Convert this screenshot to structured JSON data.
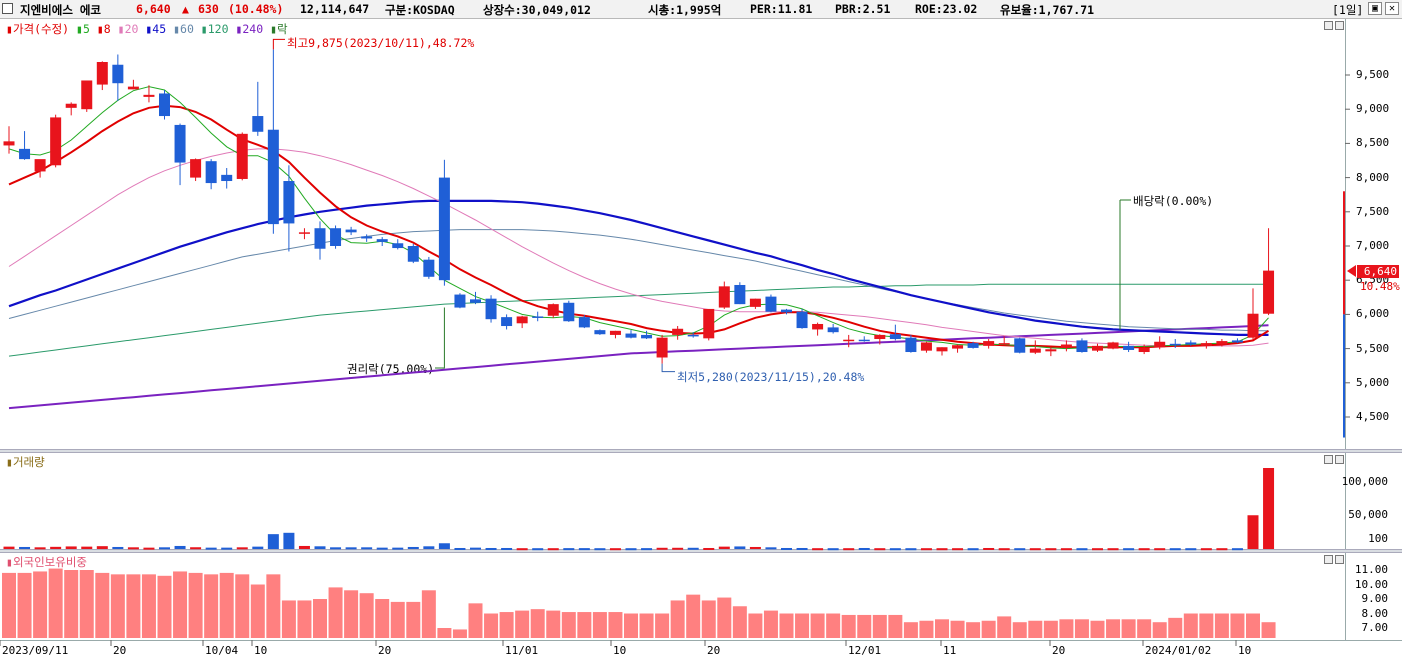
{
  "header": {
    "name": "지엔비에스 에코",
    "price": "6,640",
    "change_arrow": "▲",
    "change": "630",
    "change_pct": "(10.48%)",
    "volume": "12,114,647",
    "market": "구분:KOSDAQ",
    "shares": "상장수:30,049,012",
    "mcap": "시총:1,995억",
    "per": "PER:11.81",
    "pbr": "PBR:2.51",
    "roe": "ROE:23.02",
    "float": "유보율:1,767.71",
    "period": "[1일]"
  },
  "price_panel": {
    "legend_prefix": "가격(수정)",
    "legend": [
      {
        "label": "5",
        "color": "#22aa22"
      },
      {
        "label": "8",
        "color": "#e00000"
      },
      {
        "label": "20",
        "color": "#e07ab8"
      },
      {
        "label": "45",
        "color": "#1010c8"
      },
      {
        "label": "60",
        "color": "#6688aa"
      },
      {
        "label": "120",
        "color": "#2a9a6a"
      },
      {
        "label": "240",
        "color": "#7a22c0"
      },
      {
        "label": "락",
        "color": "#2a7a2a"
      }
    ],
    "annotations": {
      "high": "최고9,875(2023/10/11),48.72%",
      "low": "최저5,280(2023/11/15),20.48%",
      "rights": "권리락(75.00%)",
      "dividend": "배당락(0.00%)"
    },
    "current_price_label": "6,640",
    "current_pct_label": "10.48%",
    "y_ticks": [
      "9,500",
      "9,000",
      "8,500",
      "8,000",
      "7,500",
      "7,000",
      "6,500",
      "6,000",
      "5,500",
      "5,000",
      "4,500"
    ]
  },
  "volume_panel": {
    "title": "거래량",
    "y_ticks": [
      "100,000",
      "50,000",
      "100"
    ]
  },
  "foreign_panel": {
    "title": "외국인보유비중",
    "y_ticks": [
      "11.00",
      "10.00",
      "9.00",
      "8.00",
      "7.00"
    ]
  },
  "x_labels": [
    "2023/09/11",
    "20",
    "10/04",
    "10",
    "20",
    "11/01",
    "10",
    "20",
    "12/01",
    "11",
    "20",
    "2024/01/02",
    "10"
  ],
  "colors": {
    "up": "#e8141c",
    "down": "#1f5fd6",
    "foreign_bar": "#ff8080"
  },
  "chart_data": {
    "type": "candlestick",
    "price_range": [
      4200,
      9900
    ],
    "candles": [
      {
        "o": 8470,
        "h": 8750,
        "l": 8350,
        "c": 8530
      },
      {
        "o": 8420,
        "h": 8680,
        "l": 8260,
        "c": 8270
      },
      {
        "o": 8090,
        "h": 8260,
        "l": 8000,
        "c": 8270
      },
      {
        "o": 8180,
        "h": 8920,
        "l": 8150,
        "c": 8880
      },
      {
        "o": 9020,
        "h": 9100,
        "l": 8910,
        "c": 9080
      },
      {
        "o": 9000,
        "h": 9380,
        "l": 8960,
        "c": 9420
      },
      {
        "o": 9360,
        "h": 9700,
        "l": 9280,
        "c": 9690
      },
      {
        "o": 9650,
        "h": 9800,
        "l": 9120,
        "c": 9380
      },
      {
        "o": 9290,
        "h": 9430,
        "l": 9290,
        "c": 9330
      },
      {
        "o": 9180,
        "h": 9350,
        "l": 9100,
        "c": 9210
      },
      {
        "o": 9230,
        "h": 9280,
        "l": 8850,
        "c": 8900
      },
      {
        "o": 8770,
        "h": 8790,
        "l": 7890,
        "c": 8220
      },
      {
        "o": 8000,
        "h": 8280,
        "l": 7950,
        "c": 8270
      },
      {
        "o": 8240,
        "h": 8270,
        "l": 7830,
        "c": 7920
      },
      {
        "o": 8040,
        "h": 8140,
        "l": 7840,
        "c": 7950
      },
      {
        "o": 7980,
        "h": 8660,
        "l": 7960,
        "c": 8640
      },
      {
        "o": 8900,
        "h": 9400,
        "l": 8610,
        "c": 8670
      },
      {
        "o": 8700,
        "h": 9875,
        "l": 7180,
        "c": 7320
      },
      {
        "o": 7950,
        "h": 8180,
        "l": 6920,
        "c": 7330
      },
      {
        "o": 7180,
        "h": 7260,
        "l": 7100,
        "c": 7200
      },
      {
        "o": 7260,
        "h": 7360,
        "l": 6800,
        "c": 6960
      },
      {
        "o": 7260,
        "h": 7300,
        "l": 6960,
        "c": 7000
      },
      {
        "o": 7240,
        "h": 7280,
        "l": 7160,
        "c": 7200
      },
      {
        "o": 7140,
        "h": 7170,
        "l": 7060,
        "c": 7110
      },
      {
        "o": 7100,
        "h": 7130,
        "l": 7000,
        "c": 7060
      },
      {
        "o": 7040,
        "h": 7100,
        "l": 6950,
        "c": 6970
      },
      {
        "o": 7000,
        "h": 7030,
        "l": 6750,
        "c": 6770
      },
      {
        "o": 6800,
        "h": 6840,
        "l": 6520,
        "c": 6550
      },
      {
        "o": 8000,
        "h": 8260,
        "l": 6420,
        "c": 6500
      },
      {
        "o": 6290,
        "h": 6310,
        "l": 6090,
        "c": 6100
      },
      {
        "o": 6220,
        "h": 6330,
        "l": 6150,
        "c": 6170
      },
      {
        "o": 6230,
        "h": 6280,
        "l": 5880,
        "c": 5930
      },
      {
        "o": 5960,
        "h": 6000,
        "l": 5780,
        "c": 5830
      },
      {
        "o": 5870,
        "h": 5980,
        "l": 5800,
        "c": 5970
      },
      {
        "o": 5970,
        "h": 6040,
        "l": 5900,
        "c": 5950
      },
      {
        "o": 5980,
        "h": 6160,
        "l": 5950,
        "c": 6150
      },
      {
        "o": 6170,
        "h": 6200,
        "l": 5890,
        "c": 5900
      },
      {
        "o": 5960,
        "h": 5990,
        "l": 5800,
        "c": 5810
      },
      {
        "o": 5770,
        "h": 5780,
        "l": 5700,
        "c": 5710
      },
      {
        "o": 5700,
        "h": 5760,
        "l": 5650,
        "c": 5760
      },
      {
        "o": 5720,
        "h": 5770,
        "l": 5650,
        "c": 5660
      },
      {
        "o": 5700,
        "h": 5760,
        "l": 5640,
        "c": 5650
      },
      {
        "o": 5370,
        "h": 5700,
        "l": 5280,
        "c": 5660
      },
      {
        "o": 5700,
        "h": 5830,
        "l": 5630,
        "c": 5790
      },
      {
        "o": 5700,
        "h": 5740,
        "l": 5660,
        "c": 5680
      },
      {
        "o": 5650,
        "h": 6070,
        "l": 5620,
        "c": 6080
      },
      {
        "o": 6100,
        "h": 6480,
        "l": 6080,
        "c": 6410
      },
      {
        "o": 6430,
        "h": 6470,
        "l": 6150,
        "c": 6150
      },
      {
        "o": 6110,
        "h": 6230,
        "l": 6080,
        "c": 6230
      },
      {
        "o": 6260,
        "h": 6290,
        "l": 6030,
        "c": 6040
      },
      {
        "o": 6070,
        "h": 6080,
        "l": 6000,
        "c": 6030
      },
      {
        "o": 6040,
        "h": 6080,
        "l": 5790,
        "c": 5800
      },
      {
        "o": 5780,
        "h": 5880,
        "l": 5690,
        "c": 5860
      },
      {
        "o": 5810,
        "h": 5860,
        "l": 5720,
        "c": 5740
      },
      {
        "o": 5620,
        "h": 5700,
        "l": 5520,
        "c": 5630
      },
      {
        "o": 5630,
        "h": 5680,
        "l": 5600,
        "c": 5620
      },
      {
        "o": 5640,
        "h": 5710,
        "l": 5560,
        "c": 5700
      },
      {
        "o": 5710,
        "h": 5850,
        "l": 5620,
        "c": 5640
      },
      {
        "o": 5660,
        "h": 5700,
        "l": 5440,
        "c": 5450
      },
      {
        "o": 5470,
        "h": 5600,
        "l": 5440,
        "c": 5590
      },
      {
        "o": 5460,
        "h": 5520,
        "l": 5400,
        "c": 5520
      },
      {
        "o": 5500,
        "h": 5560,
        "l": 5440,
        "c": 5550
      },
      {
        "o": 5580,
        "h": 5600,
        "l": 5500,
        "c": 5510
      },
      {
        "o": 5540,
        "h": 5640,
        "l": 5500,
        "c": 5610
      },
      {
        "o": 5570,
        "h": 5680,
        "l": 5550,
        "c": 5580
      },
      {
        "o": 5650,
        "h": 5660,
        "l": 5430,
        "c": 5440
      },
      {
        "o": 5440,
        "h": 5620,
        "l": 5420,
        "c": 5500
      },
      {
        "o": 5460,
        "h": 5520,
        "l": 5390,
        "c": 5490
      },
      {
        "o": 5510,
        "h": 5620,
        "l": 5460,
        "c": 5560
      },
      {
        "o": 5620,
        "h": 5650,
        "l": 5440,
        "c": 5450
      },
      {
        "o": 5470,
        "h": 5570,
        "l": 5450,
        "c": 5540
      },
      {
        "o": 5500,
        "h": 5600,
        "l": 5490,
        "c": 5590
      },
      {
        "o": 5540,
        "h": 5600,
        "l": 5450,
        "c": 5480
      },
      {
        "o": 5450,
        "h": 5560,
        "l": 5420,
        "c": 5510
      },
      {
        "o": 5520,
        "h": 5680,
        "l": 5490,
        "c": 5600
      },
      {
        "o": 5570,
        "h": 5640,
        "l": 5510,
        "c": 5560
      },
      {
        "o": 5590,
        "h": 5620,
        "l": 5540,
        "c": 5560
      },
      {
        "o": 5540,
        "h": 5610,
        "l": 5500,
        "c": 5580
      },
      {
        "o": 5560,
        "h": 5640,
        "l": 5530,
        "c": 5610
      },
      {
        "o": 5620,
        "h": 5650,
        "l": 5580,
        "c": 5590
      },
      {
        "o": 5660,
        "h": 6380,
        "l": 5630,
        "c": 6010
      },
      {
        "o": 6010,
        "h": 7260,
        "l": 5990,
        "c": 6640
      }
    ],
    "ma5": [
      8420,
      8350,
      8330,
      8400,
      8550,
      8750,
      8950,
      9130,
      9270,
      9330,
      9280,
      9100,
      8880,
      8650,
      8450,
      8320,
      8320,
      8220,
      8020,
      7700,
      7400,
      7160,
      7050,
      7040,
      7070,
      7020,
      6900,
      6700,
      6500,
      6380,
      6260,
      6180,
      6090,
      6000,
      5960,
      5950,
      5970,
      5950,
      5880,
      5830,
      5780,
      5730,
      5680,
      5690,
      5730,
      5830,
      5990,
      6090,
      6140,
      6150,
      6140,
      6080,
      5980,
      5880,
      5790,
      5730,
      5690,
      5670,
      5640,
      5610,
      5590,
      5560,
      5550,
      5560,
      5560,
      5540,
      5530,
      5510,
      5500,
      5510,
      5520,
      5530,
      5530,
      5530,
      5540,
      5550,
      5560,
      5570,
      5580,
      5600,
      5700,
      5950
    ],
    "ma8": [
      7900,
      8000,
      8100,
      8230,
      8370,
      8520,
      8680,
      8820,
      8940,
      9020,
      9050,
      9030,
      8960,
      8850,
      8700,
      8560,
      8480,
      8390,
      8230,
      8000,
      7780,
      7580,
      7420,
      7300,
      7210,
      7140,
      7050,
      6920,
      6800,
      6660,
      6540,
      6430,
      6310,
      6200,
      6120,
      6060,
      6010,
      5980,
      5940,
      5900,
      5860,
      5800,
      5760,
      5730,
      5720,
      5730,
      5780,
      5870,
      5950,
      6000,
      6030,
      6030,
      6000,
      5950,
      5890,
      5820,
      5760,
      5720,
      5690,
      5660,
      5630,
      5600,
      5580,
      5560,
      5550,
      5540,
      5540,
      5530,
      5520,
      5520,
      5520,
      5520,
      5520,
      5520,
      5530,
      5540,
      5540,
      5550,
      5560,
      5580,
      5620,
      5760
    ],
    "ma20": [
      6700,
      6850,
      7000,
      7150,
      7300,
      7450,
      7600,
      7750,
      7880,
      8000,
      8100,
      8180,
      8250,
      8310,
      8360,
      8400,
      8420,
      8420,
      8400,
      8370,
      8320,
      8260,
      8190,
      8110,
      8030,
      7940,
      7840,
      7730,
      7620,
      7500,
      7380,
      7250,
      7120,
      6990,
      6870,
      6750,
      6640,
      6540,
      6450,
      6370,
      6300,
      6240,
      6190,
      6150,
      6110,
      6070,
      6050,
      6040,
      6040,
      6040,
      6040,
      6040,
      6030,
      6010,
      5990,
      5970,
      5940,
      5910,
      5880,
      5850,
      5810,
      5780,
      5750,
      5720,
      5690,
      5670,
      5650,
      5630,
      5610,
      5590,
      5580,
      5570,
      5560,
      5550,
      5540,
      5540,
      5540,
      5540,
      5540,
      5540,
      5550,
      5580
    ],
    "ma45": [
      6120,
      6200,
      6280,
      6350,
      6430,
      6510,
      6590,
      6670,
      6750,
      6830,
      6910,
      6990,
      7060,
      7130,
      7200,
      7260,
      7320,
      7370,
      7420,
      7460,
      7500,
      7530,
      7560,
      7590,
      7610,
      7630,
      7650,
      7660,
      7660,
      7660,
      7660,
      7660,
      7650,
      7640,
      7620,
      7590,
      7560,
      7520,
      7480,
      7430,
      7380,
      7320,
      7260,
      7200,
      7140,
      7080,
      7020,
      6960,
      6900,
      6850,
      6780,
      6720,
      6650,
      6590,
      6520,
      6460,
      6400,
      6340,
      6280,
      6230,
      6180,
      6130,
      6080,
      6030,
      5990,
      5950,
      5910,
      5880,
      5850,
      5820,
      5800,
      5780,
      5770,
      5760,
      5750,
      5740,
      5730,
      5720,
      5710,
      5700,
      5700,
      5700
    ],
    "ma60": [
      5940,
      6000,
      6060,
      6120,
      6180,
      6240,
      6300,
      6360,
      6420,
      6480,
      6540,
      6600,
      6660,
      6720,
      6780,
      6840,
      6880,
      6920,
      6960,
      7000,
      7040,
      7080,
      7110,
      7140,
      7170,
      7190,
      7210,
      7220,
      7230,
      7240,
      7240,
      7240,
      7240,
      7240,
      7230,
      7220,
      7200,
      7180,
      7160,
      7130,
      7100,
      7060,
      7020,
      6980,
      6940,
      6900,
      6860,
      6820,
      6780,
      6730,
      6680,
      6630,
      6580,
      6530,
      6480,
      6430,
      6380,
      6330,
      6280,
      6230,
      6180,
      6140,
      6100,
      6060,
      6020,
      5990,
      5960,
      5930,
      5900,
      5880,
      5860,
      5840,
      5820,
      5810,
      5800,
      5790,
      5780,
      5780,
      5770,
      5770,
      5760,
      5760
    ],
    "ma120": [
      5390,
      5420,
      5450,
      5480,
      5510,
      5540,
      5570,
      5600,
      5630,
      5660,
      5690,
      5720,
      5750,
      5780,
      5810,
      5840,
      5870,
      5900,
      5930,
      5960,
      5990,
      6010,
      6030,
      6050,
      6070,
      6090,
      6110,
      6130,
      6150,
      6160,
      6170,
      6180,
      6190,
      6200,
      6210,
      6220,
      6230,
      6240,
      6250,
      6260,
      6270,
      6280,
      6290,
      6300,
      6310,
      6320,
      6330,
      6340,
      6350,
      6360,
      6370,
      6380,
      6390,
      6400,
      6400,
      6410,
      6410,
      6420,
      6420,
      6430,
      6430,
      6430,
      6430,
      6440,
      6440,
      6440,
      6440,
      6440,
      6440,
      6440,
      6440,
      6440,
      6440,
      6440,
      6440,
      6440,
      6440,
      6440,
      6440,
      6440,
      6440,
      6440
    ],
    "ma240": [
      4630,
      4650,
      4670,
      4690,
      4710,
      4730,
      4750,
      4770,
      4790,
      4810,
      4830,
      4850,
      4870,
      4890,
      4910,
      4930,
      4950,
      4970,
      4990,
      5010,
      5030,
      5050,
      5070,
      5090,
      5110,
      5130,
      5150,
      5170,
      5190,
      5210,
      5230,
      5250,
      5270,
      5290,
      5310,
      5330,
      5350,
      5370,
      5390,
      5410,
      5430,
      5440,
      5450,
      5460,
      5470,
      5480,
      5490,
      5500,
      5510,
      5520,
      5530,
      5540,
      5550,
      5560,
      5570,
      5580,
      5590,
      5600,
      5610,
      5620,
      5630,
      5640,
      5650,
      5660,
      5670,
      5680,
      5690,
      5700,
      5710,
      5720,
      5730,
      5740,
      5750,
      5760,
      5770,
      5780,
      5790,
      5800,
      5810,
      5820,
      5830,
      5840
    ],
    "volume": [
      3500,
      3000,
      2500,
      3200,
      3800,
      3500,
      4200,
      3000,
      2500,
      2000,
      2500,
      4500,
      2600,
      2000,
      2000,
      2500,
      3500,
      22000,
      24000,
      4500,
      4000,
      2500,
      2500,
      2500,
      2000,
      2000,
      3000,
      4000,
      8500,
      1500,
      2000,
      1500,
      1500,
      1200,
      1200,
      1200,
      1300,
      1300,
      1200,
      1200,
      1200,
      1300,
      1800,
      1800,
      1800,
      1500,
      3500,
      3800,
      3000,
      2500,
      1500,
      1500,
      1200,
      1200,
      1200,
      1500,
      1200,
      1200,
      1200,
      1200,
      1200,
      1200,
      1200,
      1500,
      1200,
      1200,
      1200,
      1200,
      1200,
      1200,
      1200,
      1200,
      1200,
      1200,
      1200,
      1200,
      1200,
      1200,
      1200,
      1200,
      50000,
      120000
    ],
    "foreign": [
      10.8,
      10.8,
      10.9,
      11.1,
      11.0,
      11.0,
      10.8,
      10.7,
      10.7,
      10.7,
      10.6,
      10.9,
      10.8,
      10.7,
      10.8,
      10.7,
      10.0,
      10.7,
      8.9,
      8.9,
      9.0,
      9.8,
      9.6,
      9.4,
      9.0,
      8.8,
      8.8,
      9.6,
      7.0,
      6.9,
      8.7,
      8.0,
      8.1,
      8.2,
      8.3,
      8.2,
      8.1,
      8.1,
      8.1,
      8.1,
      8.0,
      8.0,
      8.0,
      8.9,
      9.3,
      8.9,
      9.1,
      8.5,
      8.0,
      8.2,
      8.0,
      8.0,
      8.0,
      8.0,
      7.9,
      7.9,
      7.9,
      7.9,
      7.4,
      7.5,
      7.6,
      7.5,
      7.4,
      7.5,
      7.8,
      7.4,
      7.5,
      7.5,
      7.6,
      7.6,
      7.5,
      7.6,
      7.6,
      7.6,
      7.4,
      7.7,
      8.0,
      8.0,
      8.0,
      8.0,
      8.0,
      7.4
    ]
  }
}
